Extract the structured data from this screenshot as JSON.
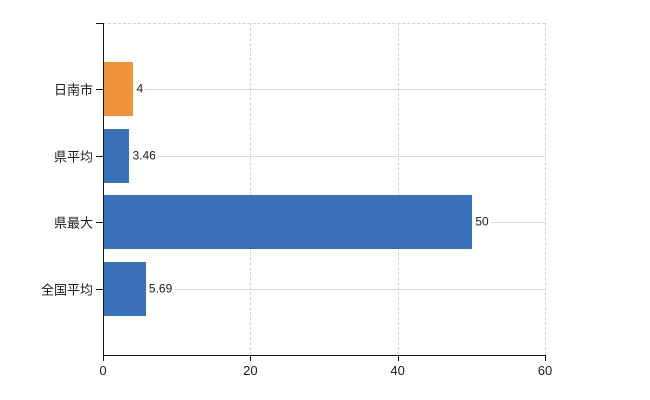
{
  "chart_data": {
    "type": "bar",
    "orientation": "horizontal",
    "title": "",
    "legend": "none",
    "categories": [
      "日南市",
      "県平均",
      "県最大",
      "全国平均"
    ],
    "values": [
      4,
      3.46,
      50,
      5.69
    ],
    "value_labels": [
      "4",
      "3.46",
      "50",
      "5.69"
    ],
    "bar_colors": [
      "#ee9339",
      "#3a70b5",
      "#3a70b5",
      "#3a70b5"
    ],
    "xlim": [
      0,
      60
    ],
    "x_ticks": [
      0,
      20,
      40,
      60
    ],
    "x_tick_labels": [
      "0",
      "20",
      "40",
      "60"
    ],
    "grid": {
      "vertical_style": "dashed",
      "vertical_color": "#d3d3d3",
      "horizontal_style": "solid",
      "horizontal_color": "#d6ddd6",
      "top_border": "dashed"
    },
    "axis_color": "#161616",
    "text_color": "#1c1c1c",
    "background": "#ffffff"
  }
}
